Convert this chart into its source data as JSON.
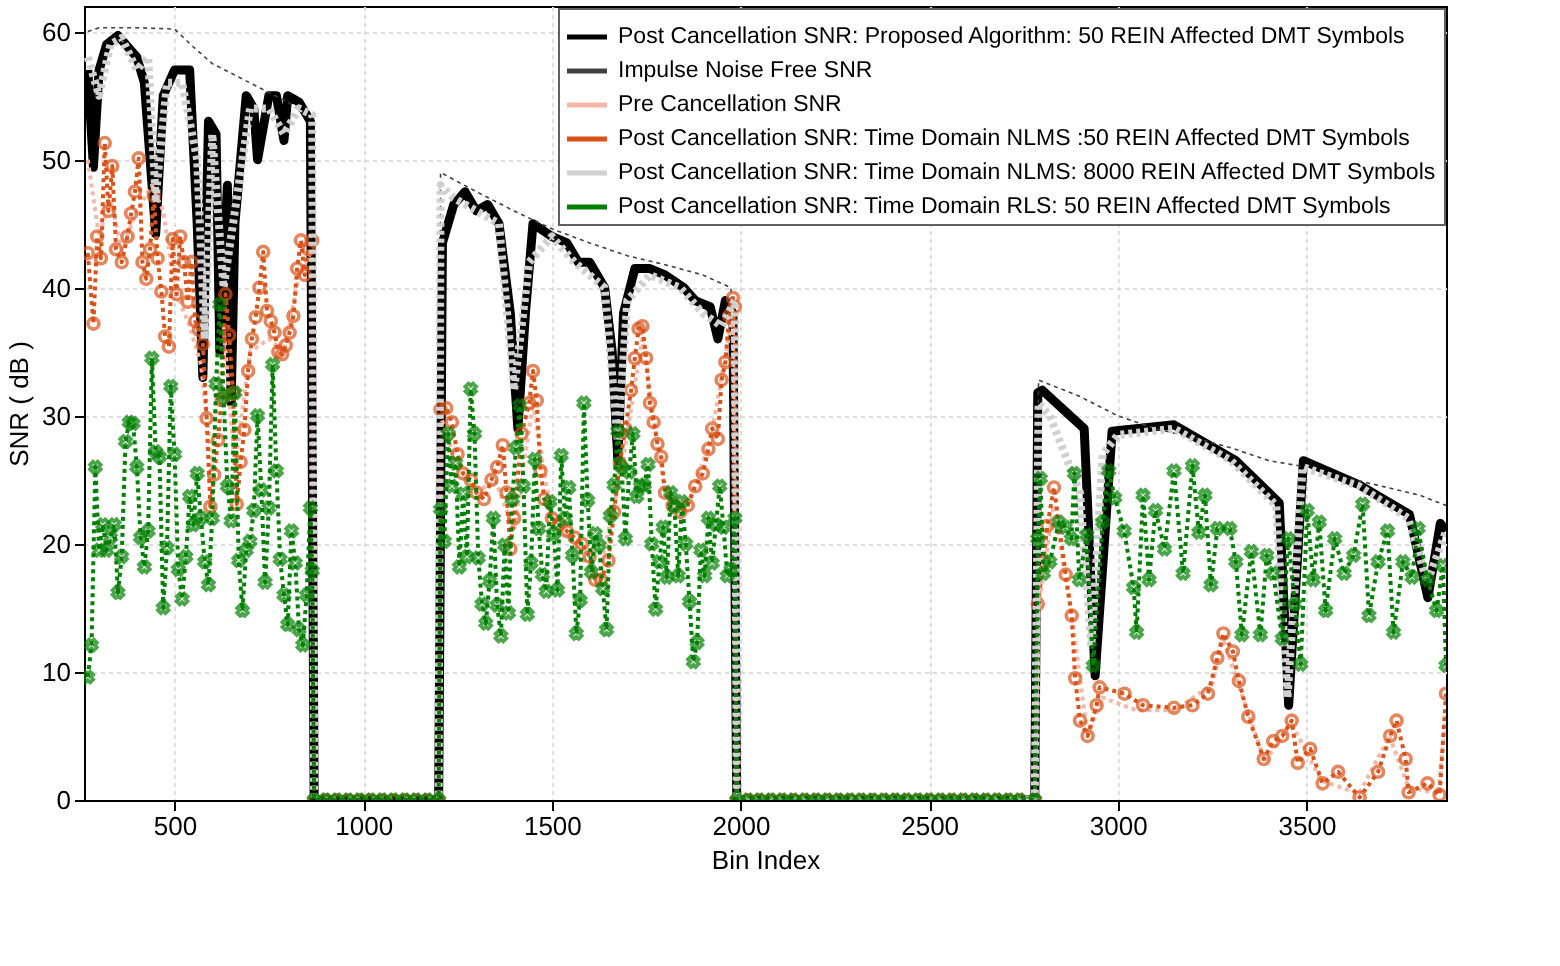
{
  "chart_data": {
    "type": "line",
    "xlabel": "Bin Index",
    "ylabel": "SNR ( dB )",
    "xlim": [
      260,
      3870
    ],
    "ylim": [
      0,
      62
    ],
    "xticks": [
      500,
      1000,
      1500,
      2000,
      2500,
      3000,
      3500
    ],
    "yticks": [
      0,
      10,
      20,
      30,
      40,
      50,
      60
    ],
    "grid": true,
    "legend": "top right",
    "series": [
      {
        "name": "Post Cancellation SNR: Proposed Algorithm: 50 REIN Affected DMT Symbols",
        "color": "#000000",
        "line_style": "solid",
        "marker": "none",
        "x": [
          270,
          285,
          300,
          320,
          350,
          400,
          420,
          450,
          470,
          500,
          540,
          560,
          575,
          590,
          610,
          620,
          640,
          650,
          660,
          690,
          710,
          720,
          750,
          770,
          790,
          800,
          830,
          860,
          870,
          1200,
          1210,
          1240,
          1270,
          1300,
          1330,
          1360,
          1390,
          1410,
          1430,
          1450,
          1500,
          1540,
          1570,
          1600,
          1640,
          1660,
          1675,
          1690,
          1720,
          1760,
          1800,
          1850,
          1880,
          1920,
          1940,
          1960,
          1980,
          1990,
          2780,
          2788,
          2800,
          2911,
          2940,
          2985,
          3149,
          3313,
          3428,
          3453,
          3492,
          3640,
          3773,
          3822,
          3855,
          3870
        ],
        "values": [
          57,
          49.4,
          57,
          59,
          59.7,
          58,
          56,
          44.2,
          55,
          57,
          57,
          45,
          33,
          53,
          52,
          35,
          48,
          31,
          45,
          55,
          54,
          50,
          55,
          55,
          51.5,
          55,
          54.5,
          53,
          0,
          0,
          43.5,
          46.5,
          47.5,
          46,
          46.5,
          45,
          38,
          29,
          38,
          45,
          44,
          43.5,
          42,
          42,
          40,
          35,
          26.5,
          38,
          41.5,
          41.5,
          41,
          40,
          39,
          38.5,
          36,
          39,
          38,
          0,
          0,
          31.8,
          32,
          29,
          9.7,
          28.8,
          29.3,
          26.5,
          23.2,
          7.4,
          26.5,
          24.6,
          22.3,
          15.8,
          21.6,
          21
        ]
      },
      {
        "name": "Impulse Noise Free SNR",
        "color": "#404040",
        "line_style": "dotted",
        "marker": "none",
        "x": [
          270,
          300,
          400,
          500,
          550,
          600,
          700,
          800,
          860,
          870,
          1200,
          1205,
          1300,
          1400,
          1500,
          1600,
          1700,
          1800,
          1900,
          1975,
          1985,
          2780,
          2790,
          2900,
          3000,
          3100,
          3200,
          3300,
          3400,
          3500,
          3600,
          3700,
          3800,
          3870
        ],
        "values": [
          60,
          60.3,
          60.3,
          60.2,
          58.8,
          57.5,
          56,
          54.5,
          53.3,
          0,
          0,
          49,
          47.5,
          46,
          44.6,
          43.5,
          42.5,
          41.8,
          41,
          40,
          0,
          0,
          32.8,
          31.5,
          30,
          29,
          28.3,
          27.5,
          26.5,
          26,
          25.2,
          24.5,
          23.8,
          23
        ]
      },
      {
        "name": "Pre Cancellation SNR",
        "color": "#f4b8a8",
        "line_style": "dotted",
        "marker": "none",
        "x": [
          270,
          300,
          330,
          360,
          400,
          440,
          470,
          500,
          540,
          570,
          600,
          630,
          660,
          700,
          750,
          790,
          830,
          865,
          870,
          1200,
          1205,
          1250,
          1300,
          1350,
          1400,
          1450,
          1500,
          1560,
          1620,
          1680,
          1740,
          1800,
          1860,
          1920,
          1980,
          1990,
          2780,
          2790,
          2830,
          2880,
          2920,
          2960,
          3050,
          3150,
          3250,
          3280,
          3320,
          3390,
          3460,
          3540,
          3640,
          3720,
          3770,
          3850,
          3870
        ],
        "values": [
          50,
          44,
          47,
          43,
          46,
          48,
          46,
          40,
          37,
          34,
          26,
          37,
          26,
          35,
          36,
          35,
          41,
          43,
          0,
          0,
          30,
          26,
          24,
          25,
          21,
          31,
          22,
          20,
          17,
          25,
          36,
          24,
          23,
          28,
          38,
          0,
          0,
          15,
          23,
          14,
          5,
          8,
          7,
          7,
          9,
          12.5,
          9,
          3,
          6,
          1.5,
          0.5,
          5,
          1,
          0.5,
          7
        ]
      },
      {
        "name": "Post Cancellation SNR: Time Domain NLMS :50 REIN Affected DMT Symbols",
        "color": "#d95319",
        "line_style": "dotted",
        "marker": "circle",
        "x": [
          270,
          285,
          295,
          305,
          315,
          325,
          335,
          345,
          360,
          375,
          385,
          395,
          405,
          415,
          425,
          435,
          445,
          455,
          465,
          475,
          485,
          495,
          505,
          515,
          525,
          535,
          545,
          555,
          565,
          575,
          585,
          595,
          605,
          615,
          625,
          635,
          645,
          655,
          665,
          675,
          685,
          695,
          705,
          715,
          725,
          735,
          745,
          755,
          765,
          775,
          785,
          795,
          805,
          815,
          825,
          835,
          845,
          855,
          865,
          870,
          900,
          930,
          960,
          990,
          1020,
          1050,
          1080,
          1110,
          1140,
          1170,
          1200,
          1205,
          1220,
          1235,
          1250,
          1265,
          1285,
          1300,
          1320,
          1340,
          1355,
          1370,
          1380,
          1390,
          1400,
          1420,
          1440,
          1450,
          1460,
          1470,
          1480,
          1500,
          1520,
          1540,
          1560,
          1580,
          1600,
          1615,
          1630,
          1650,
          1665,
          1680,
          1695,
          1710,
          1720,
          1730,
          1740,
          1750,
          1760,
          1770,
          1780,
          1790,
          1800,
          1820,
          1840,
          1860,
          1880,
          1900,
          1915,
          1925,
          1940,
          1950,
          1960,
          1970,
          1980,
          1985,
          1990,
          2020,
          2050,
          2080,
          2110,
          2140,
          2170,
          2200,
          2230,
          2260,
          2290,
          2320,
          2350,
          2380,
          2410,
          2440,
          2470,
          2500,
          2530,
          2560,
          2590,
          2620,
          2650,
          2680,
          2710,
          2740,
          2780,
          2788,
          2803,
          2813,
          2831,
          2862,
          2878,
          2887,
          2900,
          2920,
          2944,
          2952,
          3018,
          3067,
          3149,
          3198,
          3239,
          3264,
          3280,
          3305,
          3321,
          3346,
          3387,
          3412,
          3436,
          3461,
          3477,
          3510,
          3543,
          3584,
          3641,
          3690,
          3722,
          3739,
          3763,
          3771,
          3821,
          3853,
          3870
        ],
        "values": [
          42.7,
          37.2,
          44,
          42.3,
          51.3,
          46,
          49.5,
          43,
          42,
          44,
          45.8,
          47.5,
          50.1,
          42,
          40.7,
          43,
          47.2,
          42.3,
          39.7,
          36.2,
          35.4,
          43.8,
          39.5,
          44,
          42,
          38.9,
          42,
          37.4,
          36.7,
          35.6,
          29.8,
          22.9,
          25.4,
          28.1,
          31.3,
          39.5,
          36.3,
          31.8,
          23.1,
          26.4,
          28.9,
          33.5,
          36,
          37.7,
          40,
          42.8,
          38.2,
          37.4,
          36.5,
          35,
          34.8,
          35.5,
          36.5,
          37.8,
          41.5,
          43.7,
          41,
          43,
          43.7,
          0,
          0,
          0,
          0,
          0,
          0,
          0,
          0,
          0,
          0,
          0,
          0,
          30.5,
          30.6,
          29.5,
          27,
          25.5,
          25,
          24,
          23.5,
          25,
          26,
          27.7,
          24,
          19.6,
          22,
          28.6,
          31,
          33.5,
          31.2,
          25.7,
          23.5,
          22,
          21.5,
          21,
          20.5,
          20,
          19,
          17.2,
          17.2,
          18.7,
          22.5,
          26.3,
          29,
          32,
          34.5,
          36.8,
          37,
          34.5,
          31,
          29.5,
          27.8,
          26.8,
          24,
          23,
          22.5,
          23,
          24.5,
          25.5,
          27.4,
          29,
          28.2,
          32.8,
          34.2,
          37.8,
          39.2,
          38.5,
          0,
          0,
          0,
          0,
          0,
          0,
          0,
          0,
          0,
          0,
          0,
          0,
          0,
          0,
          0,
          0,
          0,
          0,
          0,
          0,
          0,
          0,
          0,
          0,
          0,
          0,
          0,
          15.3,
          18.6,
          21.4,
          24.4,
          17.6,
          14.4,
          9.5,
          6.2,
          5,
          7.4,
          8.8,
          8.3,
          7.4,
          7.2,
          7.4,
          8.3,
          11.1,
          13,
          11.6,
          9.3,
          6.5,
          3.2,
          4.6,
          5,
          6.2,
          2.9,
          4,
          1.3,
          2.2,
          0.2,
          2.2,
          5,
          6.2,
          3.2,
          0.6,
          1.3,
          0.4,
          8.3
        ]
      },
      {
        "name": "Post Cancellation SNR: Time Domain NLMS: 8000 REIN Affected DMT Symbols",
        "color": "#d0d0d0",
        "line_style": "dotted",
        "marker": "none",
        "x": [
          270,
          300,
          330,
          360,
          400,
          430,
          450,
          480,
          520,
          560,
          580,
          600,
          630,
          660,
          700,
          750,
          790,
          830,
          865,
          870,
          1200,
          1205,
          1240,
          1300,
          1360,
          1400,
          1440,
          1500,
          1560,
          1640,
          1675,
          1700,
          1760,
          1840,
          1900,
          1950,
          1985,
          1990,
          2780,
          2790,
          2820,
          2860,
          2900,
          2930,
          2960,
          3000,
          3150,
          3300,
          3420,
          3450,
          3490,
          3640,
          3770,
          3820,
          3870
        ],
        "values": [
          58,
          55,
          59,
          59.5,
          57,
          58,
          47,
          56,
          56,
          50,
          36,
          52,
          40,
          46,
          54,
          54,
          52,
          54,
          53.5,
          0,
          0,
          48,
          47,
          46,
          45,
          32,
          42,
          44,
          42,
          40,
          28,
          39,
          41,
          40,
          38,
          37,
          39,
          0,
          0,
          31,
          30,
          27,
          24,
          12,
          27,
          28.5,
          29,
          26.5,
          23,
          8,
          26,
          24.5,
          22,
          17,
          21
        ]
      },
      {
        "name": "Post Cancellation SNR: Time Domain RLS: 50 REIN Affected DMT Symbols",
        "color": "#008000",
        "line_style": "dotted",
        "marker": "cross",
        "x": [
          270,
          280,
          290,
          300,
          310,
          320,
          330,
          340,
          350,
          360,
          370,
          380,
          390,
          400,
          410,
          420,
          430,
          440,
          450,
          460,
          470,
          480,
          490,
          500,
          510,
          520,
          530,
          540,
          550,
          560,
          570,
          580,
          590,
          600,
          610,
          620,
          630,
          640,
          650,
          660,
          670,
          680,
          690,
          700,
          710,
          720,
          730,
          740,
          750,
          760,
          770,
          780,
          790,
          800,
          810,
          820,
          830,
          840,
          850,
          860,
          865,
          870,
          900,
          930,
          960,
          990,
          1020,
          1050,
          1080,
          1110,
          1140,
          1170,
          1200,
          1205,
          1215,
          1225,
          1235,
          1245,
          1255,
          1265,
          1275,
          1285,
          1295,
          1305,
          1315,
          1325,
          1335,
          1345,
          1355,
          1365,
          1375,
          1385,
          1395,
          1405,
          1415,
          1425,
          1435,
          1445,
          1455,
          1465,
          1475,
          1485,
          1495,
          1505,
          1515,
          1525,
          1535,
          1545,
          1555,
          1565,
          1575,
          1585,
          1595,
          1605,
          1615,
          1625,
          1635,
          1645,
          1655,
          1665,
          1675,
          1685,
          1695,
          1705,
          1715,
          1725,
          1735,
          1745,
          1755,
          1765,
          1775,
          1785,
          1795,
          1805,
          1815,
          1825,
          1835,
          1845,
          1855,
          1865,
          1875,
          1885,
          1895,
          1905,
          1915,
          1925,
          1935,
          1945,
          1955,
          1965,
          1975,
          1985,
          1990,
          2020,
          2050,
          2080,
          2110,
          2140,
          2170,
          2200,
          2230,
          2260,
          2290,
          2320,
          2350,
          2380,
          2410,
          2440,
          2470,
          2500,
          2530,
          2560,
          2590,
          2620,
          2650,
          2680,
          2710,
          2740,
          2780,
          2788,
          2795,
          2803,
          2820,
          2844,
          2861,
          2877,
          2885,
          2898,
          2918,
          2935,
          2960,
          2976,
          2992,
          3017,
          3042,
          3050,
          3067,
          3083,
          3100,
          3124,
          3149,
          3173,
          3198,
          3215,
          3231,
          3247,
          3264,
          3297,
          3313,
          3329,
          3354,
          3378,
          3395,
          3412,
          3436,
          3452,
          3469,
          3485,
          3502,
          3518,
          3534,
          3551,
          3575,
          3600,
          3625,
          3649,
          3666,
          3690,
          3715,
          3731,
          3756,
          3780,
          3796,
          3821,
          3845,
          3862,
          3870
        ],
        "values": [
          9.6,
          12.1,
          26,
          19.5,
          21.5,
          19.5,
          20.5,
          21.5,
          16.2,
          19,
          28,
          29.5,
          29.4,
          26,
          20.5,
          18.2,
          21,
          34.5,
          27.2,
          26.8,
          15,
          19.7,
          32.3,
          27,
          18,
          15.7,
          19,
          23.7,
          21.5,
          25.5,
          22,
          18.6,
          16.8,
          22,
          32.5,
          38.7,
          31.5,
          24.5,
          21.8,
          31.8,
          18.7,
          14.8,
          19.5,
          20.2,
          22.6,
          30,
          24.2,
          17,
          22.8,
          34,
          25.7,
          18.8,
          16,
          13.7,
          21,
          18.5,
          13.3,
          12.1,
          16,
          22.8,
          17.9,
          0,
          0,
          0,
          0,
          0,
          0,
          0,
          0,
          0,
          0,
          0,
          0,
          22.7,
          20.2,
          28.6,
          24.5,
          26.3,
          18.2,
          23.9,
          19,
          32.1,
          28.6,
          18.9,
          15.3,
          13.8,
          17.1,
          22,
          15.2,
          12.8,
          19.9,
          14.6,
          23.5,
          27.5,
          30.8,
          24.5,
          14.5,
          18.5,
          26.6,
          21.2,
          17.6,
          16.3,
          23.3,
          20.8,
          16.4,
          26.9,
          22,
          24.4,
          19.1,
          13,
          15.6,
          31,
          23.4,
          17.8,
          20.8,
          19.9,
          16.5,
          13.3,
          22.2,
          24.6,
          28.8,
          26,
          20.4,
          25.6,
          28.6,
          23.7,
          24.5,
          24.6,
          26.2,
          20,
          14.9,
          18.6,
          21.3,
          17.4,
          24,
          22.9,
          17.5,
          23.3,
          20,
          15.5,
          10.8,
          12.3,
          19.5,
          17.5,
          22,
          18.5,
          21.5,
          24.5,
          21.3,
          17.5,
          18,
          22,
          0,
          0,
          0,
          0,
          0,
          0,
          0,
          0,
          0,
          0,
          0,
          0,
          0,
          0,
          0,
          0,
          0,
          0,
          0,
          0,
          0,
          0,
          0,
          0,
          0,
          0,
          0,
          20.4,
          25.1,
          17.7,
          18.6,
          21.7,
          21.3,
          20.4,
          25.5,
          17.2,
          20.7,
          10.5,
          21.7,
          25.7,
          23.6,
          21,
          16.6,
          13.1,
          23.8,
          17.2,
          22.6,
          19.6,
          25.7,
          17.7,
          26.1,
          20.9,
          23.8,
          16.8,
          21.2,
          21.2,
          18.6,
          12.9,
          19.4,
          12.9,
          19.1,
          17.7,
          12.6,
          20.4,
          15.3,
          10.6,
          22.6,
          17.2,
          21.7,
          14.8,
          20.4,
          17.7,
          19.1,
          23.1,
          14.4,
          18.6,
          21,
          13.1,
          18.6,
          17.4,
          21.2,
          17.2,
          14.8,
          18.3,
          10.5
        ]
      }
    ]
  }
}
